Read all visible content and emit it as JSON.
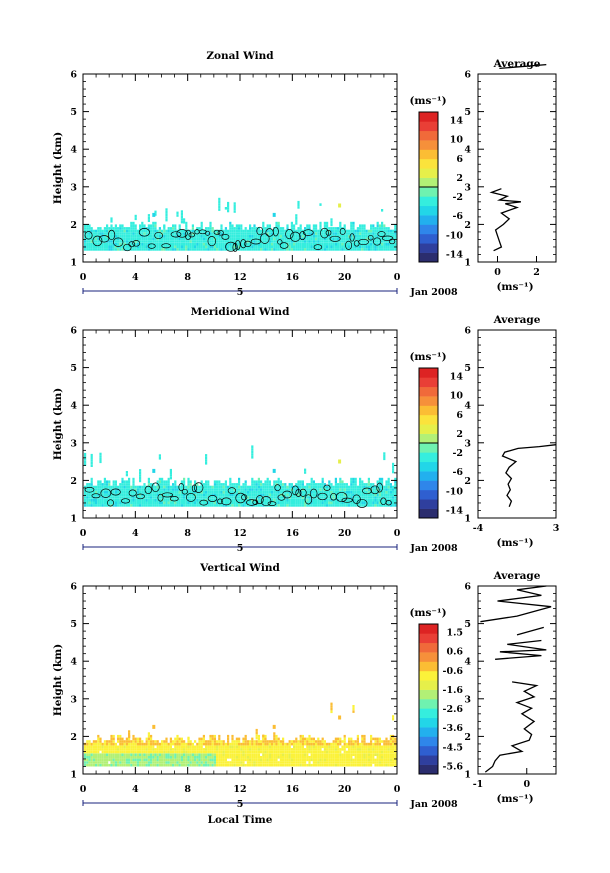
{
  "figure": {
    "x_axis_label": "Local Time",
    "date_label": "Jan 2008",
    "day_label": "5"
  },
  "chart_data": [
    {
      "type": "heatmap",
      "title": "Zonal Wind",
      "ylabel": "Height (km)",
      "xlabel": "Local Time",
      "x_ticks": [
        "0",
        "4",
        "8",
        "12",
        "16",
        "20",
        "0"
      ],
      "xlim": [
        0,
        24
      ],
      "ylim": [
        1,
        6
      ],
      "y_ticks": [
        "1",
        "2",
        "3",
        "4",
        "5",
        "6"
      ],
      "colorbar": {
        "unit": "(ms⁻¹)",
        "labels": [
          "14",
          "10",
          "6",
          "2",
          "-2",
          "-6",
          "-10",
          "-14"
        ],
        "range": [
          -16,
          16
        ]
      },
      "data_band_km": [
        1.3,
        1.9
      ],
      "sparse_top_km": 2.5,
      "dominant_value": "about -2 ms⁻¹ (cyan) with a contour at 0 ms⁻¹",
      "average_profile": {
        "title": "Average",
        "xlabel": "(ms⁻¹)",
        "x_ticks": [
          "0",
          "2"
        ],
        "xlim": [
          -1,
          3
        ],
        "ylim": [
          1,
          6
        ],
        "y_ticks": [
          "1",
          "2",
          "3",
          "4",
          "5",
          "6"
        ],
        "segments": [
          [
            [
              -0.2,
              1.3
            ],
            [
              0.2,
              1.4
            ],
            [
              0.1,
              1.55
            ],
            [
              0.0,
              1.7
            ],
            [
              -0.1,
              1.85
            ],
            [
              0.3,
              2.0
            ],
            [
              0.6,
              2.15
            ],
            [
              0.2,
              2.3
            ],
            [
              1.0,
              2.45
            ],
            [
              0.4,
              2.55
            ],
            [
              1.2,
              2.6
            ],
            [
              0.1,
              2.65
            ],
            [
              0.5,
              2.75
            ],
            [
              -0.3,
              2.85
            ],
            [
              0.2,
              2.95
            ]
          ],
          [
            [
              0.1,
              6.15
            ],
            [
              2.5,
              6.25
            ]
          ]
        ]
      }
    },
    {
      "type": "heatmap",
      "title": "Meridional Wind",
      "ylabel": "Height (km)",
      "xlabel": "Local Time",
      "x_ticks": [
        "0",
        "4",
        "8",
        "12",
        "16",
        "20",
        "0"
      ],
      "xlim": [
        0,
        24
      ],
      "ylim": [
        1,
        6
      ],
      "y_ticks": [
        "1",
        "2",
        "3",
        "4",
        "5",
        "6"
      ],
      "colorbar": {
        "unit": "(ms⁻¹)",
        "labels": [
          "14",
          "10",
          "6",
          "2",
          "-2",
          "-6",
          "-10",
          "-14"
        ],
        "range": [
          -16,
          16
        ]
      },
      "data_band_km": [
        1.3,
        1.9
      ],
      "sparse_top_km": 2.6,
      "dominant_value": "about -2 ms⁻¹ (cyan) with a contour at 0 ms⁻¹",
      "average_profile": {
        "title": "Average",
        "xlabel": "(ms⁻¹)",
        "x_ticks": [
          "-4",
          "3"
        ],
        "xlim": [
          -4,
          3
        ],
        "ylim": [
          1,
          6
        ],
        "y_ticks": [
          "1",
          "2",
          "3",
          "4",
          "5",
          "6"
        ],
        "segments": [
          [
            [
              -1.2,
              1.3
            ],
            [
              -1.0,
              1.45
            ],
            [
              -1.4,
              1.6
            ],
            [
              -1.1,
              1.75
            ],
            [
              -1.3,
              1.9
            ],
            [
              -1.0,
              2.05
            ],
            [
              -1.5,
              2.2
            ],
            [
              -1.2,
              2.35
            ],
            [
              -0.6,
              2.5
            ],
            [
              -1.8,
              2.65
            ],
            [
              -1.6,
              2.75
            ],
            [
              -0.4,
              2.85
            ],
            [
              1.5,
              2.9
            ],
            [
              3.0,
              2.95
            ]
          ]
        ]
      }
    },
    {
      "type": "heatmap",
      "title": "Vertical Wind",
      "ylabel": "Height (km)",
      "xlabel": "Local Time",
      "x_ticks": [
        "0",
        "4",
        "8",
        "12",
        "16",
        "20",
        "0"
      ],
      "xlim": [
        0,
        24
      ],
      "ylim": [
        1,
        6
      ],
      "y_ticks": [
        "1",
        "2",
        "3",
        "4",
        "5",
        "6"
      ],
      "colorbar": {
        "unit": "(ms⁻¹)",
        "labels": [
          "1.5",
          "0.6",
          "-0.6",
          "-1.6",
          "-2.6",
          "-3.6",
          "-4.5",
          "-5.6"
        ],
        "range": [
          -6,
          2
        ]
      },
      "data_band_km": [
        1.2,
        1.9
      ],
      "sparse_top_km": 2.7,
      "dominant_value": "about 0 ms⁻¹ (yellow) with orange patches above 1.8 km",
      "average_profile": {
        "title": "Average",
        "xlabel": "(ms⁻¹)",
        "x_ticks": [
          "-1",
          "0"
        ],
        "xlim": [
          -1,
          0.6
        ],
        "ylim": [
          1,
          6
        ],
        "y_ticks": [
          "1",
          "2",
          "3",
          "4",
          "5",
          "6"
        ],
        "segments": [
          [
            [
              -0.85,
              1.05
            ],
            [
              -0.7,
              1.2
            ],
            [
              -0.65,
              1.35
            ],
            [
              -0.55,
              1.5
            ],
            [
              -0.1,
              1.6
            ],
            [
              -0.3,
              1.75
            ],
            [
              0.05,
              1.9
            ],
            [
              0.1,
              2.05
            ],
            [
              -0.05,
              2.2
            ],
            [
              0.15,
              2.4
            ],
            [
              -0.1,
              2.6
            ],
            [
              0.1,
              2.75
            ],
            [
              -0.2,
              2.9
            ],
            [
              0.15,
              3.05
            ],
            [
              -0.05,
              3.2
            ],
            [
              0.2,
              3.35
            ],
            [
              -0.3,
              3.45
            ]
          ],
          [
            [
              -0.65,
              4.05
            ],
            [
              0.3,
              4.15
            ],
            [
              -0.55,
              4.25
            ],
            [
              0.4,
              4.3
            ],
            [
              -0.4,
              4.45
            ],
            [
              0.3,
              4.55
            ]
          ],
          [
            [
              -0.2,
              4.7
            ],
            [
              0.35,
              4.9
            ]
          ],
          [
            [
              -0.95,
              5.05
            ],
            [
              -0.2,
              5.2
            ],
            [
              0.5,
              5.45
            ],
            [
              -0.6,
              5.6
            ],
            [
              0.3,
              5.75
            ],
            [
              -0.2,
              5.9
            ],
            [
              0.4,
              6.0
            ]
          ]
        ]
      }
    }
  ]
}
